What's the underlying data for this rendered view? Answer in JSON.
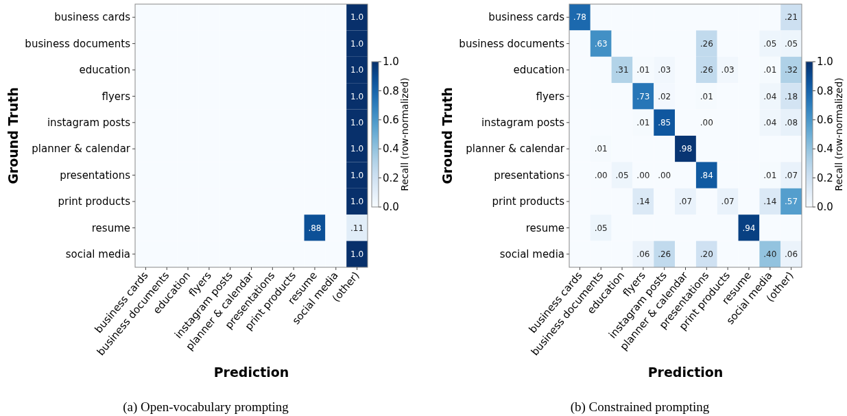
{
  "chart_data": [
    {
      "type": "heatmap",
      "xlabel": "Prediction",
      "ylabel": "Ground Truth",
      "clabel": "Recall (row-normalized)",
      "clim": [
        0,
        1
      ],
      "cticks": [
        {
          "value": 0,
          "label": "0.0"
        },
        {
          "value": 0.2,
          "label": "0.2"
        },
        {
          "value": 0.4,
          "label": "0.4"
        },
        {
          "value": 0.6,
          "label": "0.6"
        },
        {
          "value": 0.8,
          "label": "0.8"
        },
        {
          "value": 1,
          "label": "1.0"
        }
      ],
      "annotations": [
        "(a) Open-vocabulary prompting"
      ],
      "categories": [
        "business cards",
        "business documents",
        "education",
        "flyers",
        "instagram posts",
        "planner & calendar",
        "presentations",
        "print products",
        "resume",
        "social media",
        "(other)"
      ],
      "y_categories": [
        "business cards",
        "business documents",
        "education",
        "flyers",
        "instagram posts",
        "planner & calendar",
        "presentations",
        "print products",
        "resume",
        "social media"
      ],
      "cells": [
        [
          0,
          0,
          0,
          0,
          0,
          0,
          0,
          0,
          0,
          0,
          1
        ],
        [
          0,
          0,
          0,
          0,
          0,
          0,
          0,
          0,
          0,
          0,
          1
        ],
        [
          0,
          0,
          0,
          0,
          0,
          0,
          0,
          0,
          0,
          0,
          1
        ],
        [
          0,
          0,
          0,
          0,
          0,
          0,
          0,
          0,
          0,
          0,
          1
        ],
        [
          0,
          0,
          0,
          0,
          0,
          0,
          0,
          0,
          0,
          0,
          1
        ],
        [
          0,
          0,
          0,
          0,
          0,
          0,
          0,
          0,
          0,
          0,
          1
        ],
        [
          0,
          0,
          0,
          0,
          0,
          0,
          0,
          0,
          0,
          0,
          1
        ],
        [
          0,
          0,
          0,
          0,
          0,
          0,
          0,
          0,
          0,
          0,
          1
        ],
        [
          0,
          0,
          0,
          0,
          0,
          0,
          0,
          0,
          0.88,
          0,
          0.11
        ],
        [
          0,
          0,
          0,
          0,
          0,
          0,
          0,
          0,
          0,
          0,
          1
        ]
      ],
      "cell_labels": [
        [
          null,
          null,
          null,
          null,
          null,
          null,
          null,
          null,
          null,
          null,
          "1.0"
        ],
        [
          null,
          null,
          null,
          null,
          null,
          null,
          null,
          null,
          null,
          null,
          "1.0"
        ],
        [
          null,
          null,
          null,
          null,
          null,
          null,
          null,
          null,
          null,
          null,
          "1.0"
        ],
        [
          null,
          null,
          null,
          null,
          null,
          null,
          null,
          null,
          null,
          null,
          "1.0"
        ],
        [
          null,
          null,
          null,
          null,
          null,
          null,
          null,
          null,
          null,
          null,
          "1.0"
        ],
        [
          null,
          null,
          null,
          null,
          null,
          null,
          null,
          null,
          null,
          null,
          "1.0"
        ],
        [
          null,
          null,
          null,
          null,
          null,
          null,
          null,
          null,
          null,
          null,
          "1.0"
        ],
        [
          null,
          null,
          null,
          null,
          null,
          null,
          null,
          null,
          null,
          null,
          "1.0"
        ],
        [
          null,
          null,
          null,
          null,
          null,
          null,
          null,
          null,
          ".88",
          null,
          ".11"
        ],
        [
          null,
          null,
          null,
          null,
          null,
          null,
          null,
          null,
          null,
          null,
          "1.0"
        ]
      ]
    },
    {
      "type": "heatmap",
      "xlabel": "Prediction",
      "ylabel": "Ground Truth",
      "clabel": "Recall (row-normalized)",
      "clim": [
        0,
        1
      ],
      "cticks": [
        {
          "value": 0,
          "label": "0.0"
        },
        {
          "value": 0.2,
          "label": "0.2"
        },
        {
          "value": 0.4,
          "label": "0.4"
        },
        {
          "value": 0.6,
          "label": "0.6"
        },
        {
          "value": 0.8,
          "label": "0.8"
        },
        {
          "value": 1,
          "label": "1.0"
        }
      ],
      "annotations": [
        "(b) Constrained prompting"
      ],
      "categories": [
        "business cards",
        "business documents",
        "education",
        "flyers",
        "instagram posts",
        "planner & calendar",
        "presentations",
        "print products",
        "resume",
        "social media",
        "(other)"
      ],
      "y_categories": [
        "business cards",
        "business documents",
        "education",
        "flyers",
        "instagram posts",
        "planner & calendar",
        "presentations",
        "print products",
        "resume",
        "social media"
      ],
      "cells": [
        [
          0.78,
          0,
          0,
          0,
          0,
          0,
          0,
          0,
          0,
          0,
          0.21
        ],
        [
          0,
          0.63,
          0,
          0,
          0,
          0,
          0.26,
          0,
          0,
          0.05,
          0.05
        ],
        [
          0,
          0,
          0.31,
          0.01,
          0.03,
          0,
          0.26,
          0.03,
          0,
          0.01,
          0.32
        ],
        [
          0,
          0,
          0,
          0.73,
          0.02,
          0,
          0.01,
          0,
          0,
          0.04,
          0.18
        ],
        [
          0,
          0,
          0,
          0.01,
          0.85,
          0,
          0,
          0,
          0,
          0.04,
          0.08
        ],
        [
          0,
          0.01,
          0,
          0,
          0,
          0.98,
          0,
          0,
          0,
          0,
          0
        ],
        [
          0,
          0,
          0.05,
          0,
          0,
          0,
          0.84,
          0,
          0,
          0.01,
          0.07
        ],
        [
          0,
          0,
          0,
          0.14,
          0,
          0.07,
          0,
          0.07,
          0,
          0.14,
          0.57
        ],
        [
          0,
          0.05,
          0,
          0,
          0,
          0,
          0,
          0,
          0.94,
          0,
          0
        ],
        [
          0,
          0,
          0,
          0.06,
          0.26,
          0,
          0.2,
          0,
          0,
          0.4,
          0.06
        ]
      ],
      "cell_labels": [
        [
          ".78",
          null,
          null,
          null,
          null,
          null,
          null,
          null,
          null,
          null,
          ".21"
        ],
        [
          null,
          ".63",
          null,
          null,
          null,
          null,
          ".26",
          null,
          null,
          ".05",
          ".05"
        ],
        [
          null,
          null,
          ".31",
          ".01",
          ".03",
          null,
          ".26",
          ".03",
          null,
          ".01",
          ".32"
        ],
        [
          null,
          null,
          null,
          ".73",
          ".02",
          null,
          ".01",
          null,
          null,
          ".04",
          ".18"
        ],
        [
          null,
          null,
          null,
          ".01",
          ".85",
          null,
          ".00",
          null,
          null,
          ".04",
          ".08"
        ],
        [
          null,
          ".01",
          null,
          null,
          null,
          ".98",
          null,
          null,
          null,
          null,
          null
        ],
        [
          null,
          ".00",
          ".05",
          ".00",
          ".00",
          null,
          ".84",
          null,
          null,
          ".01",
          ".07"
        ],
        [
          null,
          null,
          null,
          ".14",
          null,
          ".07",
          null,
          ".07",
          null,
          ".14",
          ".57"
        ],
        [
          null,
          ".05",
          null,
          null,
          null,
          null,
          null,
          null,
          ".94",
          null,
          null
        ],
        [
          null,
          null,
          null,
          ".06",
          ".26",
          null,
          ".20",
          null,
          null,
          ".40",
          ".06"
        ]
      ]
    }
  ]
}
